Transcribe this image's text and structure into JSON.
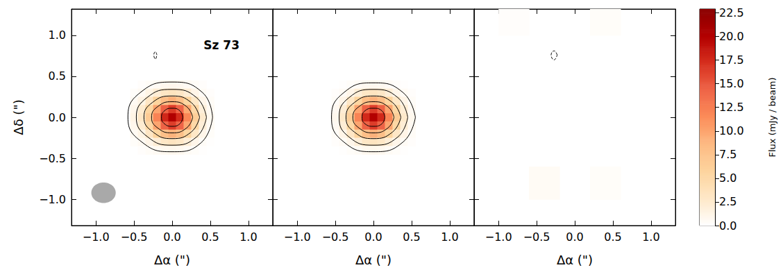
{
  "chart_data": [
    {
      "type": "heatmap",
      "title": "Sz 73",
      "xlabel": "Δα (\")",
      "ylabel": "Δδ (\")",
      "xlim": [
        -1.32,
        1.32
      ],
      "ylim": [
        -1.32,
        1.32
      ],
      "xticks": [
        {
          "value": -1,
          "label": "−1.0"
        },
        {
          "value": -0.5,
          "label": "−0.5"
        },
        {
          "value": 0,
          "label": "0.0"
        },
        0.5,
        {
          "value": 1,
          "label": "1.0"
        }
      ],
      "yticks": [
        {
          "value": -1,
          "label": "−1.0"
        },
        {
          "value": -0.5,
          "label": "−0.5"
        },
        {
          "value": 0,
          "label": "0.0"
        },
        0.5,
        {
          "value": 1,
          "label": "1.0"
        }
      ],
      "tick_labels": true,
      "cells": {
        "x": [
          -0.5,
          -0.4,
          -0.3,
          -0.2,
          -0.1,
          0,
          0.1,
          0.2,
          0.3,
          0.4,
          0.5
        ],
        "y": [
          0.4,
          0.3,
          0.2,
          0.1,
          0,
          -0.1,
          -0.2,
          -0.3,
          -0.4
        ],
        "values": [
          [
            0,
            0.2,
            0.4,
            0.6,
            0.9,
            1.0,
            0.9,
            0.6,
            0.4,
            0.2,
            0
          ],
          [
            0.3,
            0.6,
            1.3,
            2.2,
            3.1,
            3.5,
            3.1,
            2.2,
            1.2,
            0.5,
            0.2
          ],
          [
            0.6,
            1.4,
            3.1,
            5.7,
            8.2,
            9.3,
            8.0,
            5.5,
            2.9,
            1.1,
            0.4
          ],
          [
            1.0,
            2.5,
            5.5,
            10.1,
            14.6,
            16.6,
            14.4,
            9.8,
            5.1,
            2.0,
            0.6
          ],
          [
            1.3,
            3.0,
            6.7,
            12.2,
            17.7,
            20.2,
            17.5,
            11.9,
            6.3,
            2.6,
            0.8
          ],
          [
            1.0,
            2.4,
            5.4,
            10.0,
            14.5,
            16.4,
            14.4,
            9.9,
            5.2,
            2.1,
            0.6
          ],
          [
            0.6,
            1.3,
            3.1,
            5.7,
            8.1,
            9.1,
            8.0,
            5.5,
            2.9,
            1.1,
            0.3
          ],
          [
            0.3,
            0.6,
            1.2,
            2.2,
            3.0,
            3.4,
            3.0,
            2.1,
            1.1,
            0.4,
            0.1
          ],
          [
            0,
            0.2,
            0.4,
            0.6,
            0.8,
            0.9,
            0.8,
            0.5,
            0.3,
            0.1,
            0
          ]
        ]
      },
      "contours": [
        {
          "line_style": "solid",
          "points": [
            [
              0.53,
              0
            ],
            [
              0.4,
              0.3
            ],
            [
              0,
              0.43
            ],
            [
              -0.42,
              0.3
            ],
            [
              -0.58,
              0
            ],
            [
              -0.4,
              -0.3
            ],
            [
              0,
              -0.42
            ],
            [
              0.38,
              -0.31
            ]
          ]
        },
        {
          "line_style": "solid",
          "points": [
            [
              0.45,
              0
            ],
            [
              0.32,
              0.24
            ],
            [
              0,
              0.34
            ],
            [
              -0.33,
              0.24
            ],
            [
              -0.47,
              0
            ],
            [
              -0.32,
              -0.24
            ],
            [
              0,
              -0.34
            ],
            [
              0.32,
              -0.24
            ]
          ]
        },
        {
          "line_style": "solid",
          "points": [
            [
              0.36,
              0
            ],
            [
              0.25,
              0.18
            ],
            [
              0,
              0.26
            ],
            [
              -0.26,
              0.18
            ],
            [
              -0.37,
              0
            ],
            [
              -0.25,
              -0.18
            ],
            [
              0,
              -0.26
            ],
            [
              0.25,
              -0.18
            ]
          ]
        },
        {
          "line_style": "solid",
          "points": [
            [
              0.27,
              0
            ],
            [
              0.19,
              0.13
            ],
            [
              0,
              0.19
            ],
            [
              -0.19,
              0.13
            ],
            [
              -0.27,
              0
            ],
            [
              -0.19,
              -0.13
            ],
            [
              0,
              -0.19
            ],
            [
              0.19,
              -0.13
            ]
          ]
        },
        {
          "line_style": "solid",
          "points": [
            [
              0.14,
              0
            ],
            [
              0.1,
              0.08
            ],
            [
              0,
              0.11
            ],
            [
              -0.1,
              0.08
            ],
            [
              -0.14,
              0
            ],
            [
              -0.1,
              -0.08
            ],
            [
              0,
              -0.11
            ],
            [
              0.1,
              -0.08
            ]
          ]
        },
        {
          "line_style": "dashed",
          "points": [
            [
              -0.2,
              0.76
            ],
            [
              -0.22,
              0.8
            ],
            [
              -0.24,
              0.76
            ],
            [
              -0.22,
              0.71
            ]
          ]
        }
      ],
      "beam": {
        "x": -0.9,
        "y": -0.92,
        "width": 0.32,
        "height": 0.25,
        "color": "#a9a9a9"
      }
    },
    {
      "type": "heatmap",
      "xlabel": "Δα (\")",
      "xlim": [
        -1.32,
        1.32
      ],
      "ylim": [
        -1.32,
        1.32
      ],
      "xticks": [
        {
          "value": -1,
          "label": "−1.0"
        },
        {
          "value": -0.5,
          "label": "−0.5"
        },
        {
          "value": 0,
          "label": "0.0"
        },
        0.5,
        {
          "value": 1,
          "label": "1.0"
        }
      ],
      "yticks": [
        -1,
        -0.5,
        0,
        0.5,
        1
      ],
      "tick_labels": "x",
      "cells": {
        "x": [
          -0.5,
          -0.4,
          -0.3,
          -0.2,
          -0.1,
          0,
          0.1,
          0.2,
          0.3,
          0.4,
          0.5
        ],
        "y": [
          0.4,
          0.3,
          0.2,
          0.1,
          0,
          -0.1,
          -0.2,
          -0.3,
          -0.4
        ],
        "values": [
          [
            0,
            0.1,
            0.3,
            0.5,
            0.8,
            0.9,
            0.8,
            0.5,
            0.3,
            0.1,
            0
          ],
          [
            0.2,
            0.5,
            1.1,
            2.1,
            3.0,
            3.4,
            3.0,
            2.1,
            1.1,
            0.5,
            0.2
          ],
          [
            0.4,
            1.2,
            3.0,
            5.6,
            8.1,
            9.2,
            8.1,
            5.6,
            3.0,
            1.2,
            0.4
          ],
          [
            0.7,
            2.2,
            5.3,
            10.0,
            14.5,
            16.5,
            14.5,
            10.0,
            5.3,
            2.2,
            0.7
          ],
          [
            0.9,
            2.7,
            6.5,
            12.1,
            17.6,
            20.0,
            17.6,
            12.1,
            6.5,
            2.7,
            0.9
          ],
          [
            0.7,
            2.2,
            5.3,
            10.0,
            14.5,
            16.5,
            14.5,
            10.0,
            5.3,
            2.2,
            0.7
          ],
          [
            0.4,
            1.2,
            3.0,
            5.6,
            8.1,
            9.2,
            8.1,
            5.6,
            3.0,
            1.2,
            0.4
          ],
          [
            0.2,
            0.5,
            1.1,
            2.1,
            3.0,
            3.4,
            3.0,
            2.1,
            1.1,
            0.5,
            0.2
          ],
          [
            0,
            0.1,
            0.3,
            0.5,
            0.8,
            0.9,
            0.8,
            0.5,
            0.3,
            0.1,
            0
          ]
        ]
      },
      "contours": [
        {
          "line_style": "solid",
          "points": [
            [
              0.55,
              0
            ],
            [
              0.39,
              0.3
            ],
            [
              0,
              0.42
            ],
            [
              -0.39,
              0.3
            ],
            [
              -0.55,
              0
            ],
            [
              -0.39,
              -0.3
            ],
            [
              0,
              -0.42
            ],
            [
              0.39,
              -0.3
            ]
          ]
        },
        {
          "line_style": "solid",
          "points": [
            [
              0.45,
              0
            ],
            [
              0.32,
              0.24
            ],
            [
              0,
              0.34
            ],
            [
              -0.32,
              0.24
            ],
            [
              -0.45,
              0
            ],
            [
              -0.32,
              -0.24
            ],
            [
              0,
              -0.34
            ],
            [
              0.32,
              -0.24
            ]
          ]
        },
        {
          "line_style": "solid",
          "points": [
            [
              0.36,
              0
            ],
            [
              0.25,
              0.18
            ],
            [
              0,
              0.26
            ],
            [
              -0.25,
              0.18
            ],
            [
              -0.36,
              0
            ],
            [
              -0.25,
              -0.18
            ],
            [
              0,
              -0.26
            ],
            [
              0.25,
              -0.18
            ]
          ]
        },
        {
          "line_style": "solid",
          "points": [
            [
              0.27,
              0
            ],
            [
              0.19,
              0.13
            ],
            [
              0,
              0.19
            ],
            [
              -0.19,
              0.13
            ],
            [
              -0.27,
              0
            ],
            [
              -0.19,
              -0.13
            ],
            [
              0,
              -0.19
            ],
            [
              0.19,
              -0.13
            ]
          ]
        },
        {
          "line_style": "solid",
          "points": [
            [
              0.15,
              0
            ],
            [
              0.11,
              0.08
            ],
            [
              0,
              0.11
            ],
            [
              -0.11,
              0.08
            ],
            [
              -0.15,
              0
            ],
            [
              -0.11,
              -0.08
            ],
            [
              0,
              -0.11
            ],
            [
              0.11,
              -0.08
            ]
          ]
        }
      ]
    },
    {
      "type": "heatmap",
      "xlabel": "Δα (\")",
      "xlim": [
        -1.32,
        1.32
      ],
      "ylim": [
        -1.32,
        1.32
      ],
      "xticks": [
        {
          "value": -1,
          "label": "−1.0"
        },
        {
          "value": -0.5,
          "label": "−0.5"
        },
        {
          "value": 0,
          "label": "0.0"
        },
        0.5,
        {
          "value": 1,
          "label": "1.0"
        }
      ],
      "yticks": [
        -1,
        -0.5,
        0,
        0.5,
        1
      ],
      "tick_labels": "x",
      "cells": {
        "x": [
          -1.2,
          -0.8,
          -0.4,
          0,
          0.4,
          0.8,
          1.2
        ],
        "y": [
          1.2,
          0.8,
          0.4,
          0,
          -0.4,
          -0.8,
          -1.2
        ],
        "values": [
          [
            0,
            0.2,
            0,
            0,
            0.3,
            0,
            0
          ],
          [
            0,
            0,
            0,
            0,
            0,
            0,
            0
          ],
          [
            0,
            0,
            0,
            0,
            0,
            0,
            0
          ],
          [
            0,
            0,
            0,
            0,
            0,
            0,
            0
          ],
          [
            0,
            0,
            0,
            0,
            0,
            0,
            0
          ],
          [
            0,
            0,
            0.5,
            0,
            0.3,
            0,
            0
          ],
          [
            0,
            0,
            0,
            0,
            0,
            0,
            0
          ]
        ]
      },
      "contours": [
        {
          "line_style": "dashed",
          "points": [
            [
              -0.23,
              0.76
            ],
            [
              -0.27,
              0.81
            ],
            [
              -0.31,
              0.76
            ],
            [
              -0.27,
              0.7
            ]
          ]
        }
      ],
      "colorbar": {
        "label": "Flux (mJy / beam)",
        "range": [
          0,
          22.9
        ],
        "ticks": [
          {
            "value": 0,
            "label": "0.0"
          },
          2.5,
          {
            "value": 5,
            "label": "5.0"
          },
          7.5,
          {
            "value": 10,
            "label": "10.0"
          },
          12.5,
          {
            "value": 15,
            "label": "15.0"
          },
          17.5,
          {
            "value": 20,
            "label": "20.0"
          },
          22.5
        ],
        "colors": [
          "#ffffff",
          "#fee8c8",
          "#fdd49e",
          "#fdbb84",
          "#fc8d59",
          "#ef6548",
          "#d7301f",
          "#b30000",
          "#8b0000"
        ]
      }
    }
  ]
}
